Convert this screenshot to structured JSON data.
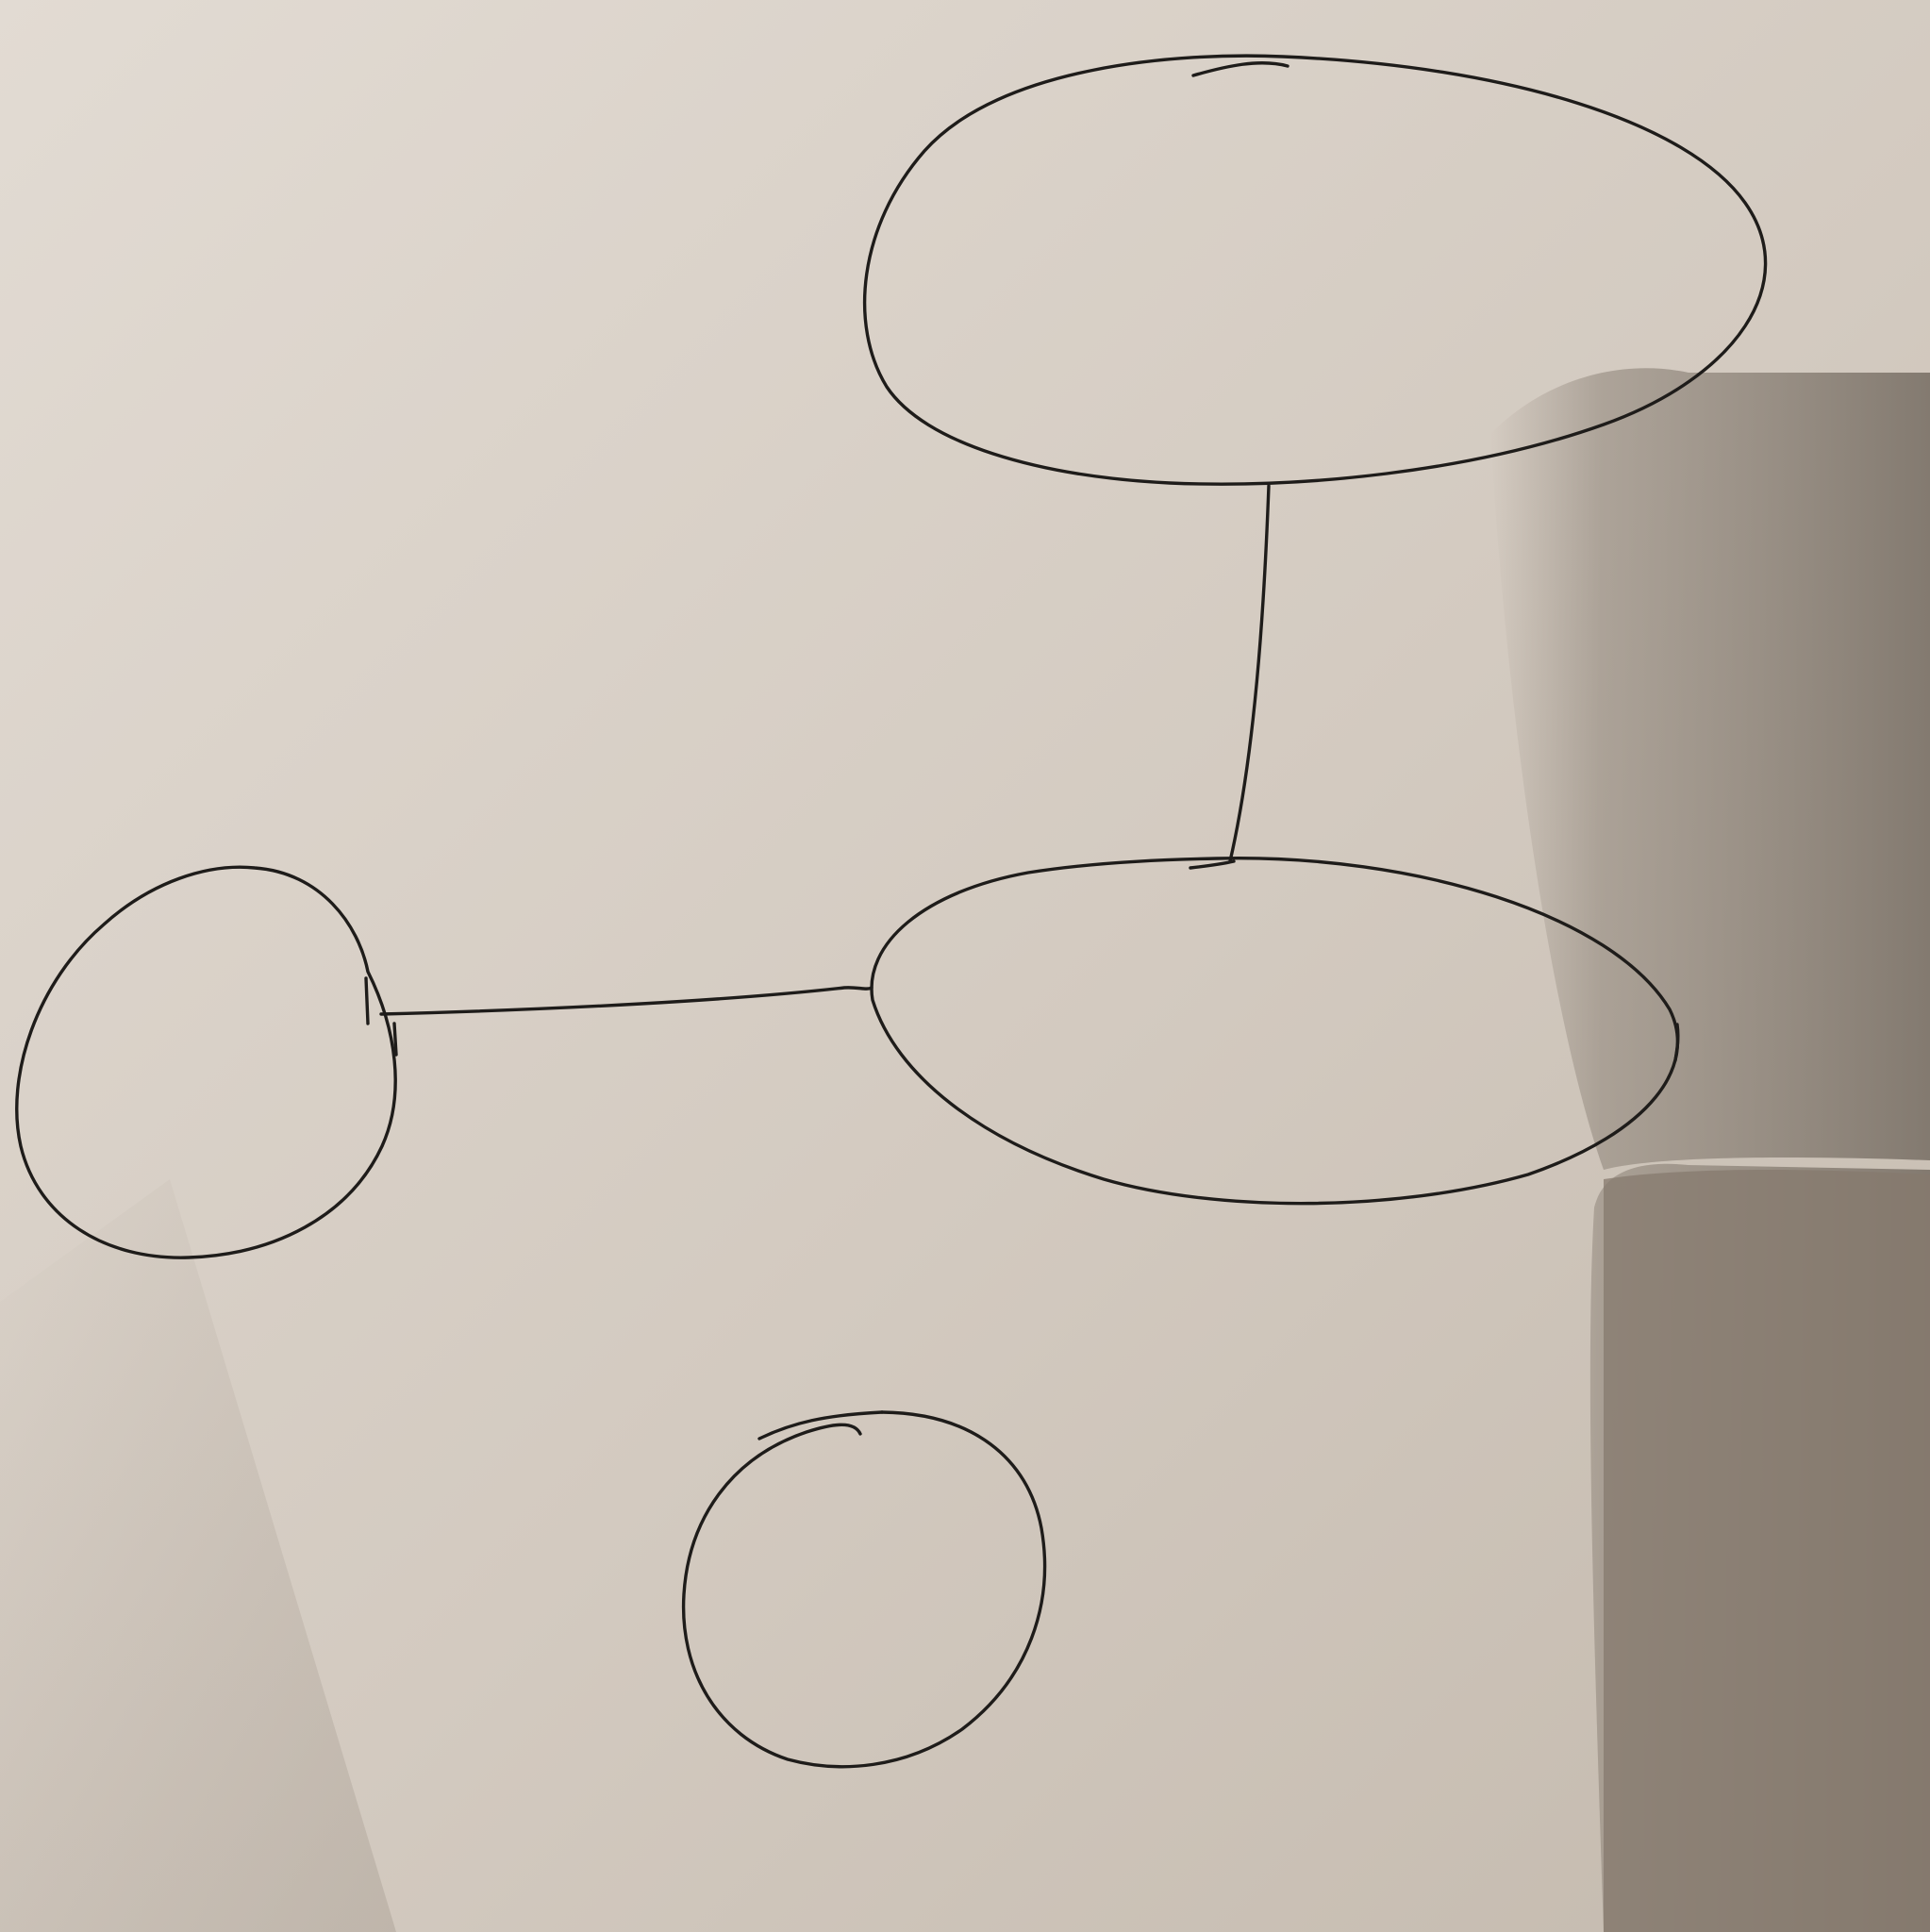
{
  "diagram": {
    "nodes": [
      {
        "id": "node-top"
      },
      {
        "id": "node-middle-right"
      },
      {
        "id": "node-left"
      },
      {
        "id": "node-bottom"
      }
    ],
    "edges": [
      {
        "from": "node-top",
        "to": "node-middle-right"
      },
      {
        "from": "node-left",
        "to": "node-middle-right"
      }
    ],
    "colors": {
      "paper": "#d8d0c6",
      "ink": "#1e1c1a",
      "shadow": "#8d8378"
    }
  }
}
